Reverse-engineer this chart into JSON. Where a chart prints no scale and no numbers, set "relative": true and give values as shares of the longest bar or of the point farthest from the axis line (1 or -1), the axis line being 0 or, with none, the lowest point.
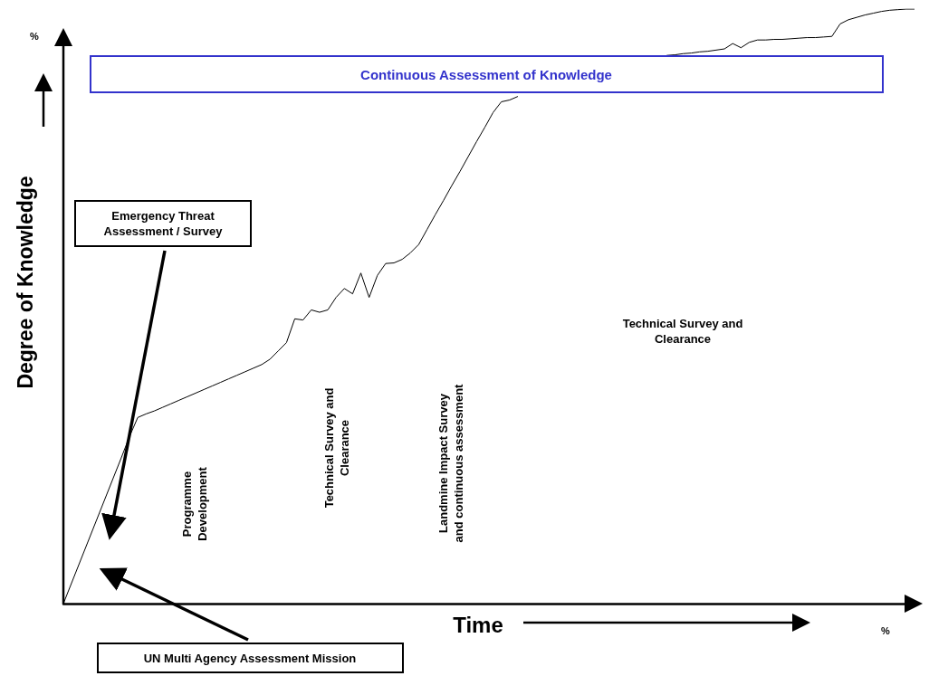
{
  "chart_data": {
    "type": "line",
    "relative": true,
    "xlabel": "Time",
    "ylabel": "Degree of Knowledge",
    "tick_labels": false,
    "grid": false,
    "marker": "none",
    "line_style": "solid",
    "categories": [
      null,
      null,
      null,
      null,
      null,
      null,
      null,
      null,
      null,
      null,
      null,
      null,
      null,
      null,
      null,
      null,
      null,
      null,
      null,
      null,
      null,
      null,
      null,
      null,
      null,
      null,
      null,
      null,
      null,
      null,
      null,
      null,
      null,
      null,
      null,
      null,
      null,
      null,
      null,
      null,
      null,
      null,
      null,
      null,
      null,
      null,
      null,
      null,
      null,
      null,
      null,
      null,
      null,
      null,
      null,
      null,
      null,
      null,
      null,
      null,
      null,
      null,
      null,
      null,
      null,
      null,
      null,
      null,
      null,
      null,
      null,
      null,
      null,
      null,
      null,
      null,
      null,
      null,
      null,
      null,
      null,
      null,
      null,
      null,
      null,
      null,
      null,
      null,
      null,
      null,
      null,
      null,
      null,
      null,
      null,
      null,
      null,
      null,
      null,
      null,
      null,
      null,
      null,
      null
    ],
    "values": [
      0,
      0.035,
      0.07,
      0.105,
      0.14,
      0.175,
      0.21,
      0.245,
      0.281,
      0.313,
      0.319,
      0.324,
      0.33,
      0.336,
      0.342,
      0.348,
      0.354,
      0.36,
      0.366,
      0.372,
      0.378,
      0.384,
      0.39,
      0.396,
      0.402,
      0.411,
      0.425,
      0.439,
      0.479,
      0.477,
      0.494,
      0.49,
      0.494,
      0.515,
      0.53,
      0.521,
      0.556,
      0.515,
      0.552,
      0.572,
      0.573,
      0.579,
      0.59,
      0.604,
      0.629,
      0.654,
      0.678,
      0.703,
      0.727,
      0.752,
      0.777,
      0.801,
      0.826,
      0.844,
      0.847,
      0.853,
      null,
      null,
      null,
      null,
      null,
      null,
      null,
      null,
      null,
      null,
      null,
      null,
      null,
      null,
      null,
      null,
      null,
      0.922,
      0.923,
      0.925,
      0.926,
      0.928,
      0.929,
      0.931,
      0.933,
      0.942,
      0.935,
      0.944,
      0.948,
      0.948,
      0.949,
      0.949,
      0.95,
      0.951,
      0.952,
      0.952,
      0.953,
      0.954,
      0.975,
      0.982,
      0.986,
      0.99,
      0.993,
      0.996,
      0.998,
      0.999,
      1,
      1
    ],
    "color": "#000000",
    "annotations": [
      "Continuous Assessment of Knowledge",
      "Emergency Threat\nAssessment / Survey",
      "UN Multi Agency Assessment Mission",
      "Programme\nDevelopment",
      "Technical Survey and\nClearance",
      "Landmine Impact Survey\nand continuous assessment",
      "Technical Survey and\nClearance",
      "%",
      "%"
    ]
  }
}
